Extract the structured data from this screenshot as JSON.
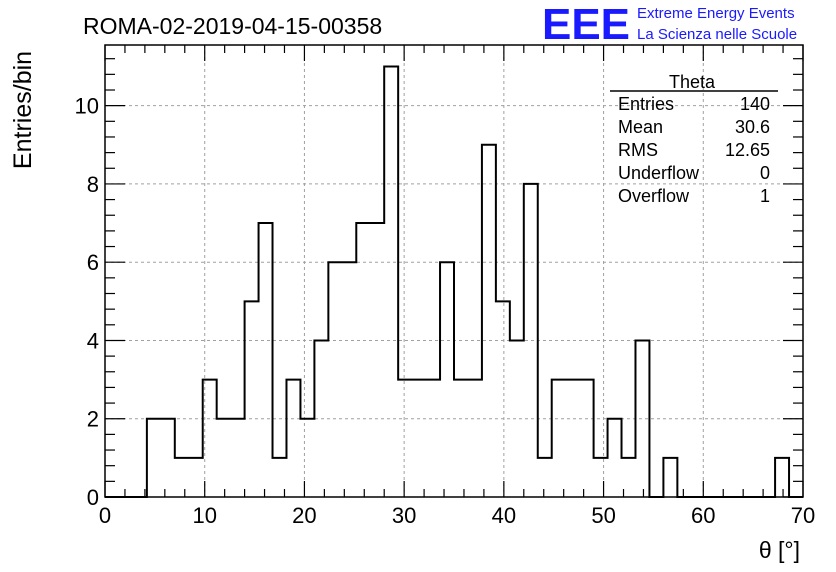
{
  "header": {
    "run_title": "ROMA-02-2019-04-15-00358",
    "logo_text": "EEE",
    "org_line1": "Extreme Energy Events",
    "org_line2": "La Scienza nelle Scuole"
  },
  "stats": {
    "title": "Theta",
    "rows": [
      {
        "label": "Entries",
        "value": "140"
      },
      {
        "label": "Mean",
        "value": "30.6"
      },
      {
        "label": "RMS",
        "value": "12.65"
      },
      {
        "label": "Underflow",
        "value": "0"
      },
      {
        "label": "Overflow",
        "value": "1"
      }
    ]
  },
  "colors": {
    "logo": "#1a1aff",
    "line": "#000000",
    "grid": "#a0a0a0"
  },
  "chart_data": {
    "type": "bar",
    "title": "ROMA-02-2019-04-15-00358",
    "xlabel": "θ [°]",
    "ylabel": "Entries/bin",
    "xlim": [
      0,
      70
    ],
    "ylim": [
      0,
      11.55
    ],
    "bin_width": 1.4,
    "x_ticks": [
      0,
      10,
      20,
      30,
      40,
      50,
      60,
      70
    ],
    "y_ticks": [
      0,
      2,
      4,
      6,
      8,
      10
    ],
    "grid": true,
    "values": [
      0,
      0,
      0,
      2,
      2,
      1,
      1,
      3,
      2,
      2,
      5,
      7,
      1,
      3,
      2,
      4,
      6,
      6,
      7,
      7,
      11,
      3,
      3,
      3,
      6,
      3,
      3,
      9,
      5,
      4,
      8,
      1,
      3,
      3,
      3,
      1,
      2,
      1,
      4,
      0,
      1,
      0,
      0,
      0,
      0,
      0,
      0,
      0,
      1,
      0
    ]
  }
}
